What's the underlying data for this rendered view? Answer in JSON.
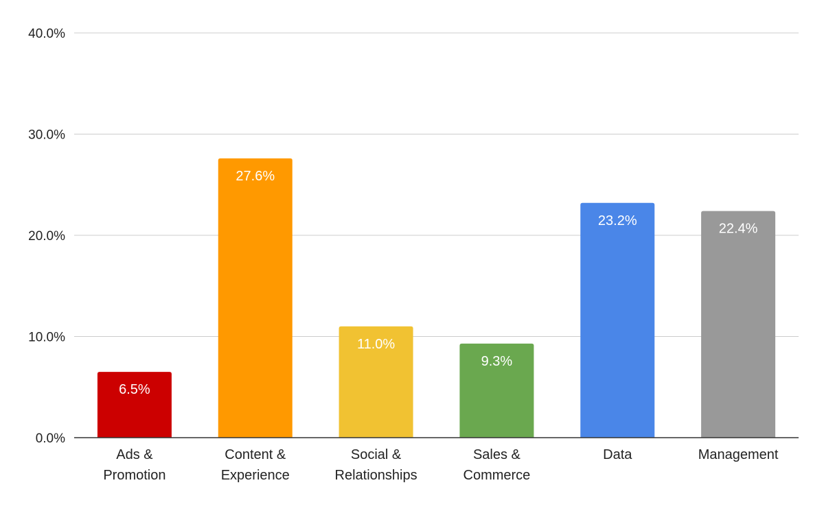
{
  "chart_data": {
    "type": "bar",
    "categories": [
      [
        "Ads &",
        "Promotion"
      ],
      [
        "Content &",
        "Experience"
      ],
      [
        "Social &",
        "Relationships"
      ],
      [
        "Sales &",
        "Commerce"
      ],
      [
        "Data"
      ],
      [
        "Management"
      ]
    ],
    "values": [
      6.5,
      27.6,
      11.0,
      9.3,
      23.2,
      22.4
    ],
    "data_labels": [
      "6.5%",
      "27.6%",
      "11.0%",
      "9.3%",
      "23.2%",
      "22.4%"
    ],
    "colors": [
      "#cc0000",
      "#ff9900",
      "#f1c232",
      "#6aa84f",
      "#4a86e8",
      "#999999"
    ],
    "ylim": [
      0,
      40
    ],
    "yticks": [
      0,
      10,
      20,
      30,
      40
    ],
    "ytick_labels": [
      "0.0%",
      "10.0%",
      "20.0%",
      "30.0%",
      "40.0%"
    ],
    "grid": true,
    "legend": "none",
    "title": "",
    "xlabel": "",
    "ylabel": ""
  }
}
